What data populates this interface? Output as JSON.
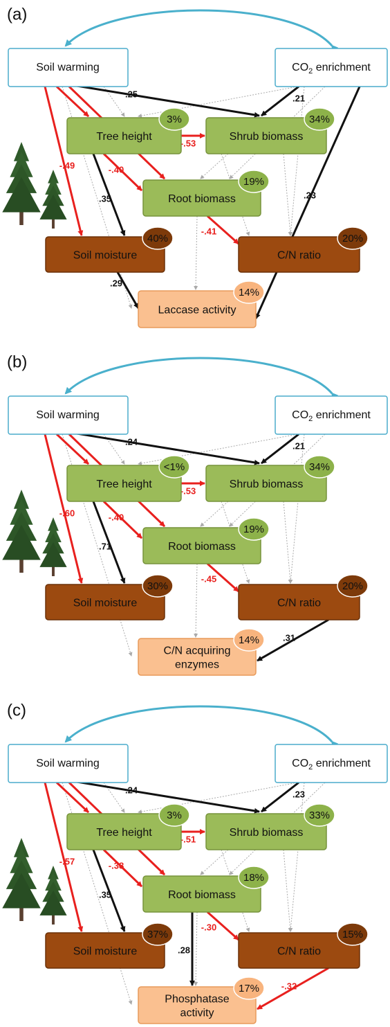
{
  "panels": [
    {
      "label": "(a)",
      "nodes": {
        "soil_warming": "Soil warming",
        "co2": {
          "text": "CO",
          "sub": "2",
          "rest": " enrichment"
        },
        "tree_height": {
          "name": [
            "Tree height"
          ],
          "r2": "3%"
        },
        "shrub_biomass": {
          "name": [
            "Shrub biomass"
          ],
          "r2": "34%"
        },
        "root_biomass": {
          "name": [
            "Root biomass"
          ],
          "r2": "19%"
        },
        "soil_moisture": {
          "name": [
            "Soil moisture"
          ],
          "r2": "40%"
        },
        "cn_ratio": {
          "name": [
            "C/N ratio"
          ],
          "r2": "20%"
        },
        "response": {
          "name": [
            "Laccase activity"
          ],
          "r2": "14%"
        }
      },
      "paths": {
        "warming_shrub": ".25",
        "co2_shrub": ".21",
        "warming_moisture": "-.49",
        "tree_shrub": "-.53",
        "tree_root": "-.40",
        "tree_moisture": ".35",
        "root_cn": "-.41",
        "moisture_response": ".29",
        "co2_response": ".23"
      }
    },
    {
      "label": "(b)",
      "nodes": {
        "soil_warming": "Soil warming",
        "co2": {
          "text": "CO",
          "sub": "2",
          "rest": " enrichment"
        },
        "tree_height": {
          "name": [
            "Tree height"
          ],
          "r2": "<1%"
        },
        "shrub_biomass": {
          "name": [
            "Shrub biomass"
          ],
          "r2": "34%"
        },
        "root_biomass": {
          "name": [
            "Root biomass"
          ],
          "r2": "19%"
        },
        "soil_moisture": {
          "name": [
            "Soil moisture"
          ],
          "r2": "30%"
        },
        "cn_ratio": {
          "name": [
            "C/N ratio"
          ],
          "r2": "20%"
        },
        "response": {
          "name": [
            "C/N acquiring",
            "enzymes"
          ],
          "r2": "14%"
        }
      },
      "paths": {
        "warming_shrub": ".24",
        "co2_shrub": ".21",
        "warming_moisture": "-.60",
        "tree_shrub": "-.53",
        "tree_root": "-.40",
        "tree_moisture": ".71",
        "root_cn": "-.45",
        "cn_response": ".31"
      }
    },
    {
      "label": "(c)",
      "nodes": {
        "soil_warming": "Soil warming",
        "co2": {
          "text": "CO",
          "sub": "2",
          "rest": " enrichment"
        },
        "tree_height": {
          "name": [
            "Tree height"
          ],
          "r2": "3%"
        },
        "shrub_biomass": {
          "name": [
            "Shrub biomass"
          ],
          "r2": "33%"
        },
        "root_biomass": {
          "name": [
            "Root biomass"
          ],
          "r2": "18%"
        },
        "soil_moisture": {
          "name": [
            "Soil moisture"
          ],
          "r2": "37%"
        },
        "cn_ratio": {
          "name": [
            "C/N ratio"
          ],
          "r2": "15%"
        },
        "response": {
          "name": [
            "Phosphatase",
            "activity"
          ],
          "r2": "17%"
        }
      },
      "paths": {
        "warming_shrub": ".24",
        "co2_shrub": ".23",
        "warming_moisture": "-.57",
        "tree_shrub": "-.51",
        "tree_root": "-.38",
        "tree_moisture": ".35",
        "root_response": ".28",
        "root_cn": "-.30",
        "cn_response": "-.32"
      }
    }
  ]
}
